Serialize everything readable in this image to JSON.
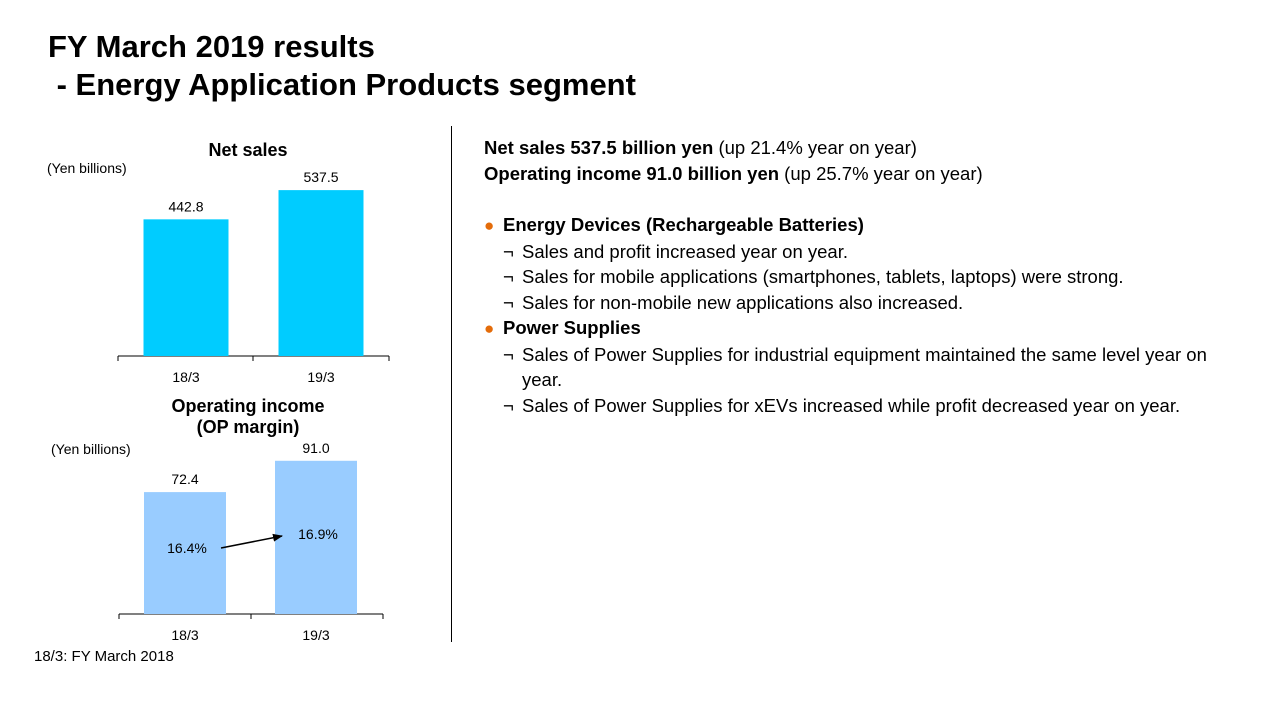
{
  "title": {
    "line1": "FY March 2019 results",
    "line2": " - Energy Application Products segment"
  },
  "net_sales_chart": {
    "title": "Net sales",
    "unit": "(Yen billions)"
  },
  "op_income_chart": {
    "title_line1": "Operating income",
    "title_line2": "(OP margin)",
    "unit": "(Yen billions)"
  },
  "footnote": "18/3: FY March 2018",
  "chart_data": [
    {
      "type": "bar",
      "title": "Net sales",
      "ylabel": "(Yen billions)",
      "categories": [
        "18/3",
        "19/3"
      ],
      "values": [
        442.8,
        537.5
      ],
      "value_labels": [
        "442.8",
        "537.5"
      ],
      "color": "#00ccff",
      "ylim": [
        0,
        580
      ]
    },
    {
      "type": "bar",
      "title": "Operating income (OP margin)",
      "ylabel": "(Yen billions)",
      "categories": [
        "18/3",
        "19/3"
      ],
      "values": [
        72.4,
        91.0
      ],
      "value_labels": [
        "72.4",
        "91.0"
      ],
      "margins": [
        "16.4%",
        "16.9%"
      ],
      "color": "#99ccff",
      "ylim": [
        0,
        98
      ]
    }
  ],
  "summary": {
    "net_sales_bold": "Net sales 537.5 billion yen",
    "net_sales_rest": " (up 21.4% year on year)",
    "op_income_bold": "Operating income 91.0 billion yen",
    "op_income_rest": " (up 25.7% year on year)"
  },
  "bullets": {
    "bullet_symbol": "●",
    "sub_symbol": "¬",
    "energy_devices": {
      "heading": "Energy Devices (Rechargeable Batteries)",
      "items": [
        "Sales and profit increased year on year.",
        "Sales for mobile applications (smartphones, tablets, laptops) were strong.",
        "Sales for non-mobile new applications also increased."
      ]
    },
    "power_supplies": {
      "heading": "Power Supplies",
      "items": [
        "Sales of Power Supplies for industrial equipment maintained the same level year on year.",
        "Sales of Power Supplies for xEVs increased while profit decreased year on year."
      ]
    }
  }
}
